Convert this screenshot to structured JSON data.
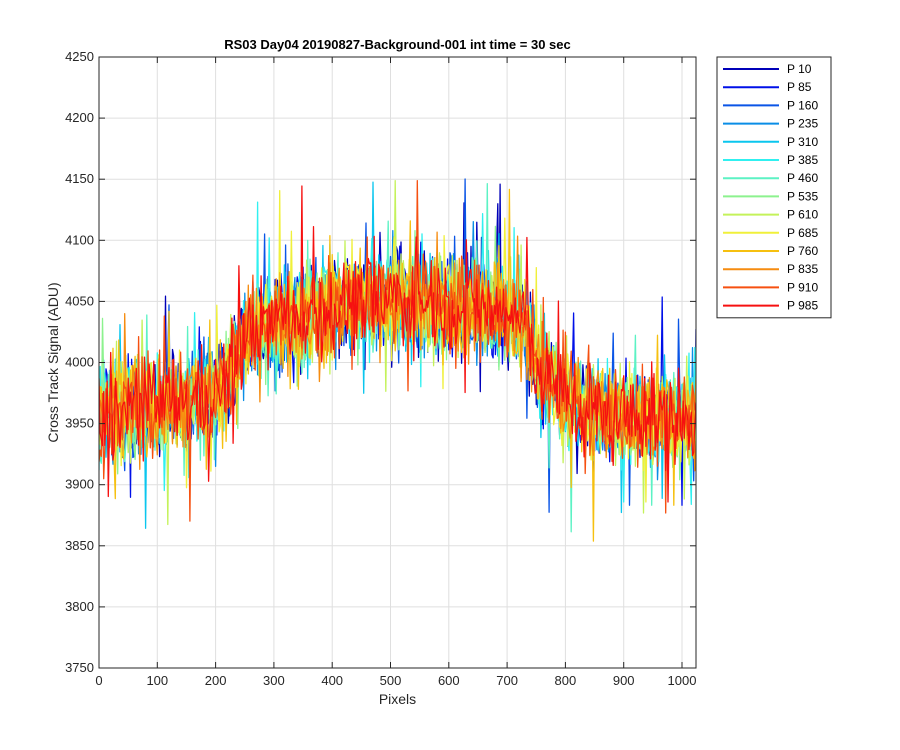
{
  "chart_data": {
    "type": "line",
    "title": "RS03 Day04 20190827-Background-001 int time = 30 sec",
    "xlabel": "Pixels",
    "ylabel": "Cross Track Signal (ADU)",
    "xlim": [
      0,
      1024
    ],
    "ylim": [
      3750,
      4250
    ],
    "xticks": [
      0,
      100,
      200,
      300,
      400,
      500,
      600,
      700,
      800,
      900,
      1000
    ],
    "yticks": [
      3750,
      3800,
      3850,
      3900,
      3950,
      4000,
      4050,
      4100,
      4150,
      4200,
      4250
    ],
    "grid": true,
    "legend_position": "outside-top-right",
    "trend": {
      "x": [
        0,
        50,
        100,
        150,
        200,
        220,
        250,
        300,
        350,
        400,
        450,
        500,
        550,
        600,
        650,
        700,
        730,
        760,
        800,
        850,
        900,
        950,
        1000,
        1024
      ],
      "y": [
        3955,
        3960,
        3965,
        3968,
        3975,
        3985,
        4020,
        4035,
        4040,
        4045,
        4050,
        4052,
        4052,
        4050,
        4045,
        4040,
        4030,
        3990,
        3970,
        3960,
        3955,
        3955,
        3955,
        3952
      ],
      "noise_amplitude": 35
    },
    "series": [
      {
        "name": "P 10",
        "color": "#0000b8"
      },
      {
        "name": "P 85",
        "color": "#0010e8"
      },
      {
        "name": "P 160",
        "color": "#0a55e6"
      },
      {
        "name": "P 235",
        "color": "#0a8ee6"
      },
      {
        "name": "P 310",
        "color": "#0ac6ee"
      },
      {
        "name": "P 385",
        "color": "#30f0f0"
      },
      {
        "name": "P 460",
        "color": "#5cf2c4"
      },
      {
        "name": "P 535",
        "color": "#8cf28e"
      },
      {
        "name": "P 610",
        "color": "#c4f25a"
      },
      {
        "name": "P 685",
        "color": "#f0f03a"
      },
      {
        "name": "P 760",
        "color": "#f6c010"
      },
      {
        "name": "P 835",
        "color": "#f68c10"
      },
      {
        "name": "P 910",
        "color": "#f65010"
      },
      {
        "name": "P 985",
        "color": "#f61010"
      }
    ]
  }
}
